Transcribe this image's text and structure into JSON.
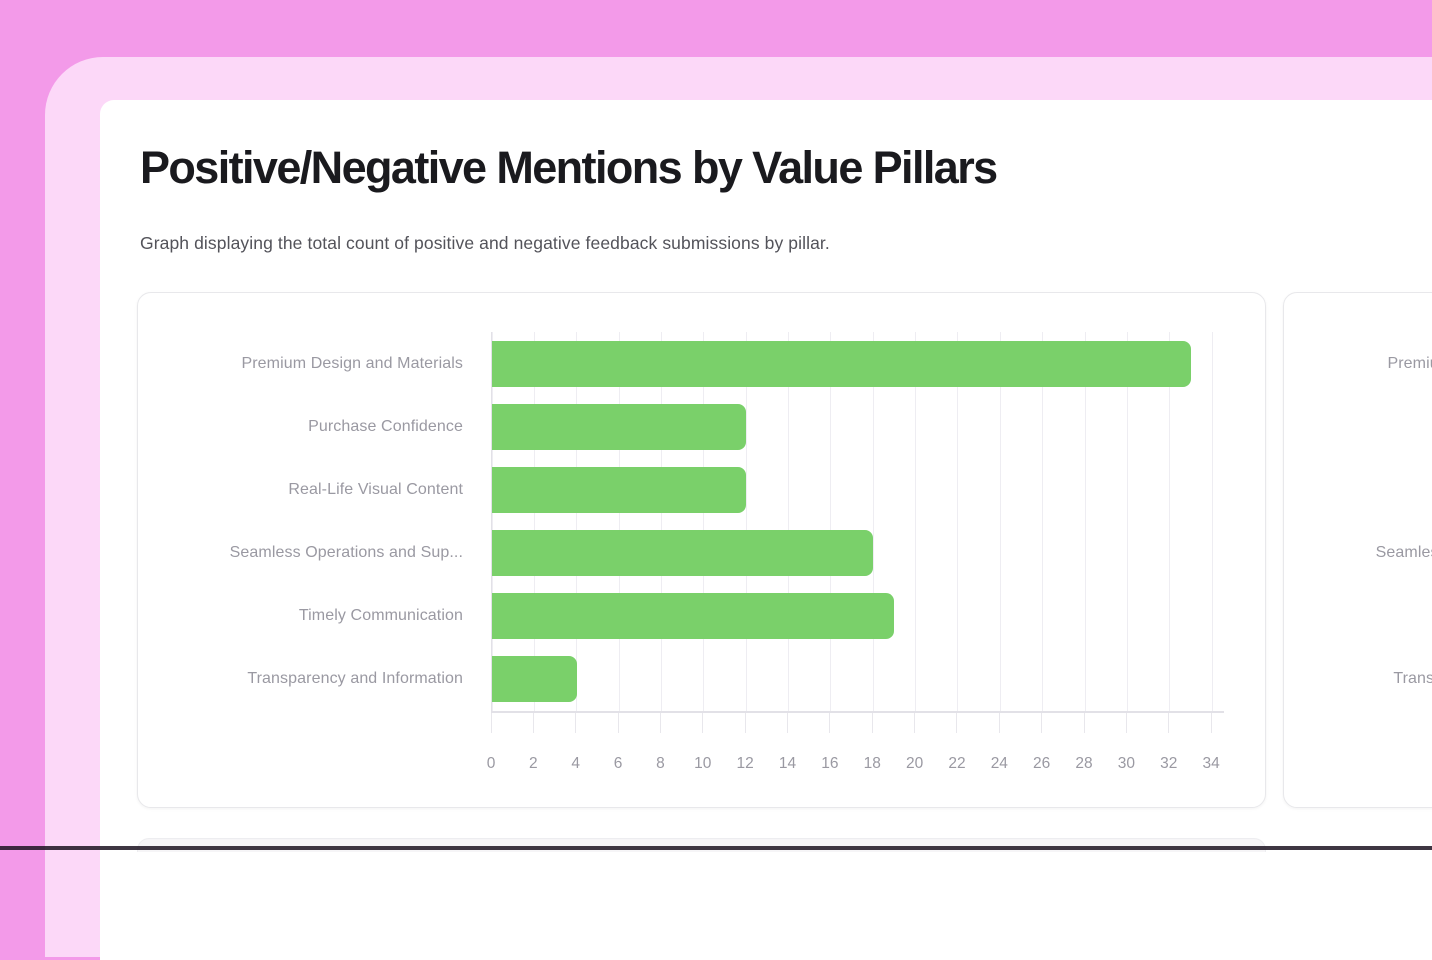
{
  "page": {
    "title": "Positive/Negative Mentions by Value Pillars",
    "subtitle": "Graph displaying the total count of positive and negative feedback submissions by pillar."
  },
  "colors": {
    "background_pink": "#f39ae9",
    "frame_light_pink": "#fcd8f8",
    "page_background": "#ffffff",
    "bar_green": "#7ad06a",
    "axis_text_gray": "#9a99a2",
    "title_color": "#1a1a1e"
  },
  "chart_data": {
    "type": "bar",
    "orientation": "horizontal",
    "title": "",
    "xlabel": "",
    "ylabel": "",
    "grid": true,
    "legend": "none",
    "categories": [
      "Premium Design and Materials",
      "Purchase Confidence",
      "Real-Life Visual Content",
      "Seamless Operations and Sup...",
      "Timely Communication",
      "Transparency and Information"
    ],
    "values": [
      33,
      12,
      12,
      18,
      19,
      4
    ],
    "bar_color": "#7ad06a",
    "xticks": [
      0,
      2,
      4,
      6,
      8,
      10,
      12,
      14,
      16,
      18,
      20,
      22,
      24,
      26,
      28,
      30,
      32,
      34
    ],
    "xlim": [
      0,
      34.6
    ]
  },
  "second_chart": {
    "categories": [
      "Premium Design and Materials",
      "Purchase Confidence",
      "Real-Life Visual Content",
      "Seamless Operations and Sup...",
      "Timely Communication",
      "Transparency and Information"
    ]
  }
}
